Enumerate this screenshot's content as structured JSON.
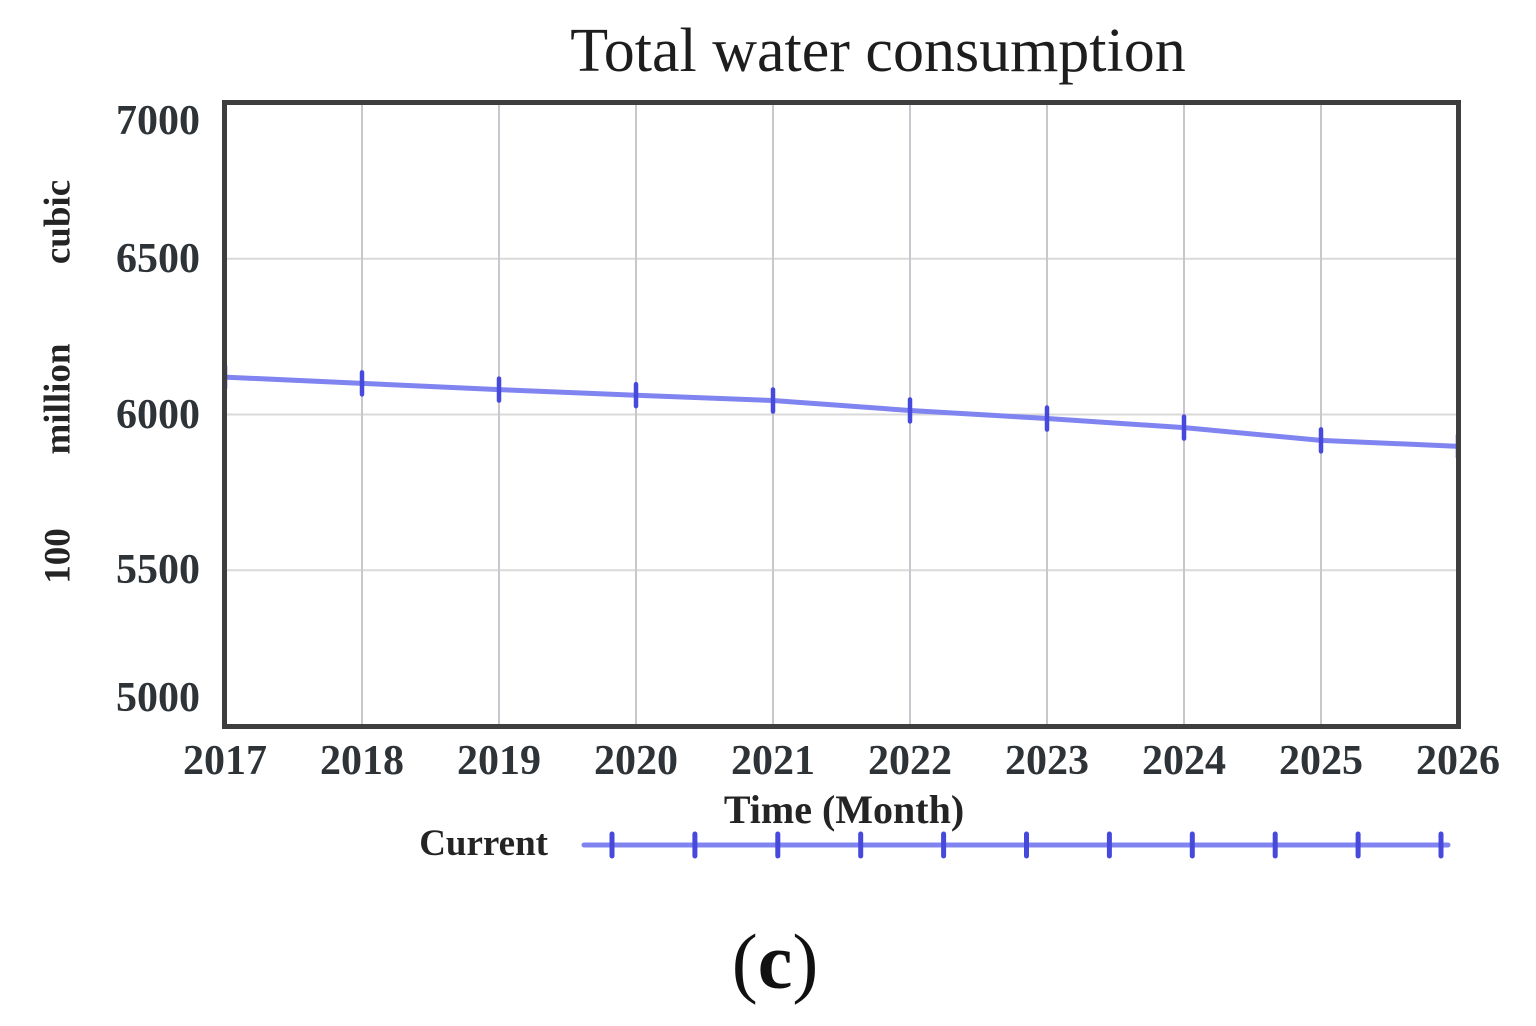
{
  "chart_data": {
    "type": "line",
    "title": "Total water consumption",
    "xlabel": "Time (Month)",
    "ylabel": "100 million cubic",
    "ylabel_words": [
      "100",
      "million",
      "cubic"
    ],
    "x": [
      2017,
      2018,
      2019,
      2020,
      2021,
      2022,
      2023,
      2024,
      2025,
      2026
    ],
    "xticks": [
      2017,
      2018,
      2019,
      2020,
      2021,
      2022,
      2023,
      2024,
      2025,
      2026
    ],
    "yticks": [
      5000,
      5500,
      6000,
      6500,
      7000
    ],
    "ylim": [
      5000,
      7000
    ],
    "xlim": [
      2017,
      2026
    ],
    "grid": true,
    "legend_position": "bottom",
    "series": [
      {
        "name": "Current",
        "values": [
          6120,
          6100,
          6080,
          6062,
          6045,
          6013,
          5987,
          5958,
          5917,
          5898
        ]
      }
    ],
    "colors": {
      "line": "#8084f0",
      "marker": "#4649dc",
      "v_grid": "#c7c7cd",
      "h_grid": "#d9d9d9",
      "frame": "#3e3e3e"
    }
  },
  "legend": {
    "label": "Current"
  },
  "caption": {
    "open": "(",
    "letter": "c",
    "close": ")"
  }
}
